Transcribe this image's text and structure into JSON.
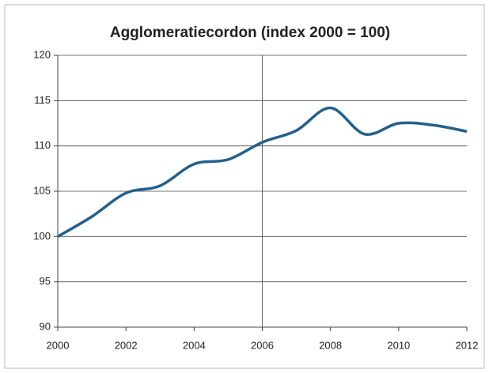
{
  "chart_data": {
    "type": "line",
    "title": "Agglomeratiecordon (index 2000 = 100)",
    "x": [
      2000,
      2001,
      2002,
      2003,
      2004,
      2005,
      2006,
      2007,
      2008,
      2009,
      2010,
      2011,
      2012
    ],
    "series": [
      {
        "name": "Agglomeratiecordon",
        "color": "#22608c",
        "values": [
          100,
          102.2,
          104.8,
          105.6,
          108,
          108.5,
          110.4,
          111.7,
          114.2,
          111.3,
          112.5,
          112.3,
          111.6
        ]
      }
    ],
    "xlim": [
      2000,
      2012
    ],
    "xticks": [
      2000,
      2002,
      2004,
      2006,
      2008,
      2010,
      2012
    ],
    "ylim": [
      90,
      120
    ],
    "yticks": [
      90,
      95,
      100,
      105,
      110,
      115,
      120
    ],
    "grid": true,
    "vline": 2006,
    "smooth": true
  }
}
